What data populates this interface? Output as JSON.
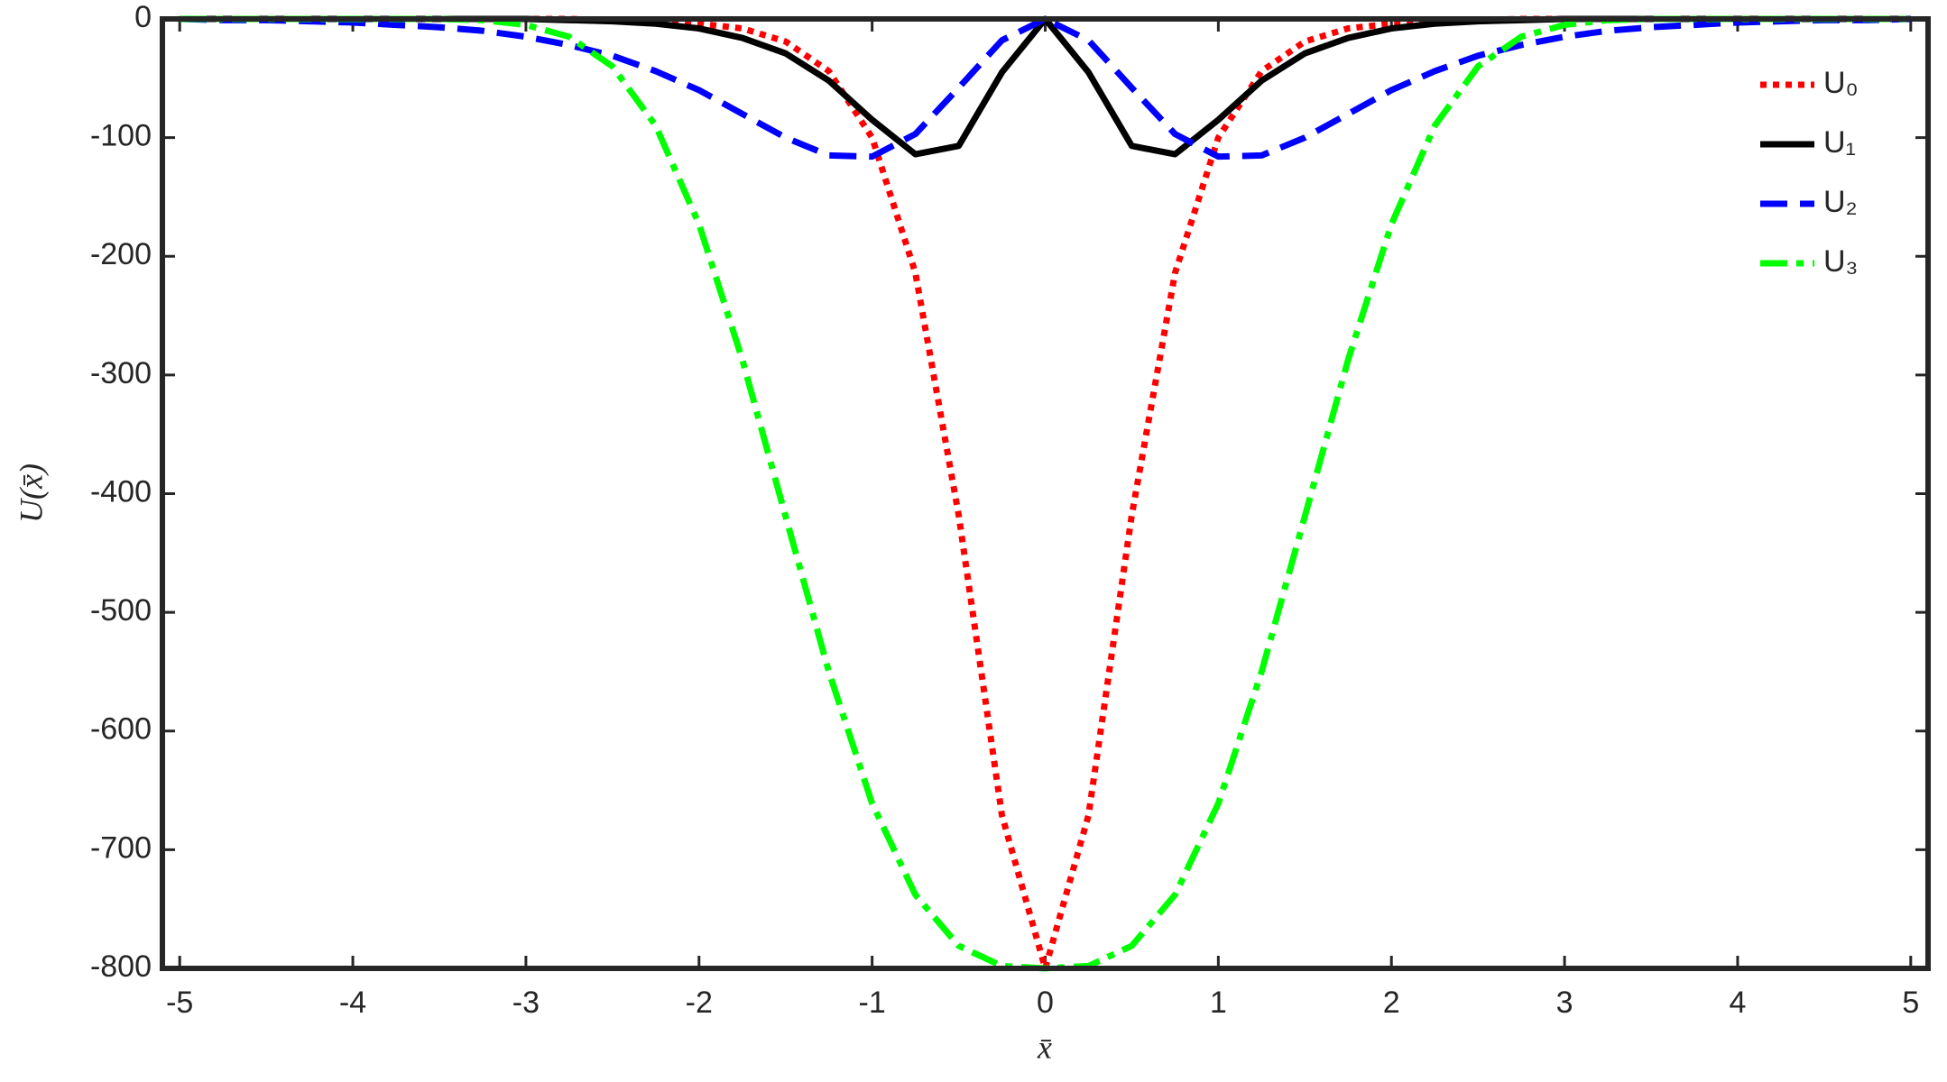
{
  "chart_data": {
    "type": "line",
    "x_label": "x̄",
    "y_label": "U(x̄)",
    "x": [
      -5,
      -4.75,
      -4.5,
      -4.25,
      -4,
      -3.75,
      -3.5,
      -3.25,
      -3,
      -2.75,
      -2.5,
      -2.25,
      -2,
      -1.75,
      -1.5,
      -1.25,
      -1,
      -0.75,
      -0.5,
      -0.25,
      0,
      0.25,
      0.5,
      0.75,
      1,
      1.25,
      1.5,
      1.75,
      2,
      2.25,
      2.5,
      2.75,
      3,
      3.25,
      3.5,
      3.75,
      4,
      4.25,
      4.5,
      4.75,
      5
    ],
    "series": [
      {
        "name": "U₀",
        "color": "#ff0000",
        "linestyle": "dotted",
        "values": [
          0,
          0,
          0,
          0,
          0,
          0,
          0,
          0,
          0,
          0,
          -1,
          -2,
          -4,
          -8,
          -19,
          -44,
          -100,
          -214,
          -418,
          -671,
          -800,
          -671,
          -418,
          -214,
          -100,
          -44,
          -19,
          -8,
          -4,
          -2,
          -1,
          0,
          0,
          0,
          0,
          0,
          0,
          0,
          0,
          0,
          0
        ]
      },
      {
        "name": "U₁",
        "color": "#000000",
        "linestyle": "solid",
        "values": [
          0,
          0,
          0,
          0,
          0,
          0,
          0,
          0,
          0,
          -1,
          -2,
          -4,
          -8,
          -16,
          -29,
          -52,
          -85,
          -114,
          -107,
          -45,
          0,
          -45,
          -107,
          -114,
          -85,
          -52,
          -29,
          -16,
          -8,
          -4,
          -2,
          -1,
          0,
          0,
          0,
          0,
          0,
          0,
          0,
          0,
          0
        ]
      },
      {
        "name": "U₂",
        "color": "#0000ff",
        "linestyle": "dashed",
        "values": [
          0,
          -1,
          -1,
          -2,
          -3,
          -5,
          -7,
          -10,
          -15,
          -22,
          -31,
          -44,
          -60,
          -80,
          -100,
          -115,
          -116,
          -97,
          -58,
          -18,
          0,
          -18,
          -58,
          -97,
          -116,
          -115,
          -100,
          -80,
          -60,
          -44,
          -31,
          -22,
          -15,
          -10,
          -7,
          -5,
          -3,
          -2,
          -1,
          -1,
          0
        ]
      },
      {
        "name": "U₃",
        "color": "#00ff00",
        "linestyle": "dashdot",
        "values": [
          0,
          0,
          0,
          0,
          0,
          0,
          0,
          -1,
          -5,
          -15,
          -40,
          -90,
          -173,
          -287,
          -419,
          -550,
          -661,
          -738,
          -781,
          -798,
          -800,
          -798,
          -781,
          -738,
          -661,
          -550,
          -419,
          -287,
          -173,
          -90,
          -40,
          -15,
          -5,
          -1,
          0,
          0,
          0,
          0,
          0,
          0,
          0
        ]
      }
    ],
    "xlim": [
      -5.1,
      5.1
    ],
    "ylim": [
      -800,
      0
    ],
    "xticks": [
      -5,
      -4,
      -3,
      -2,
      -1,
      0,
      1,
      2,
      3,
      4,
      5
    ],
    "yticks": [
      -800,
      -700,
      -600,
      -500,
      -400,
      -300,
      -200,
      -100,
      0
    ],
    "legend": "upper right"
  }
}
